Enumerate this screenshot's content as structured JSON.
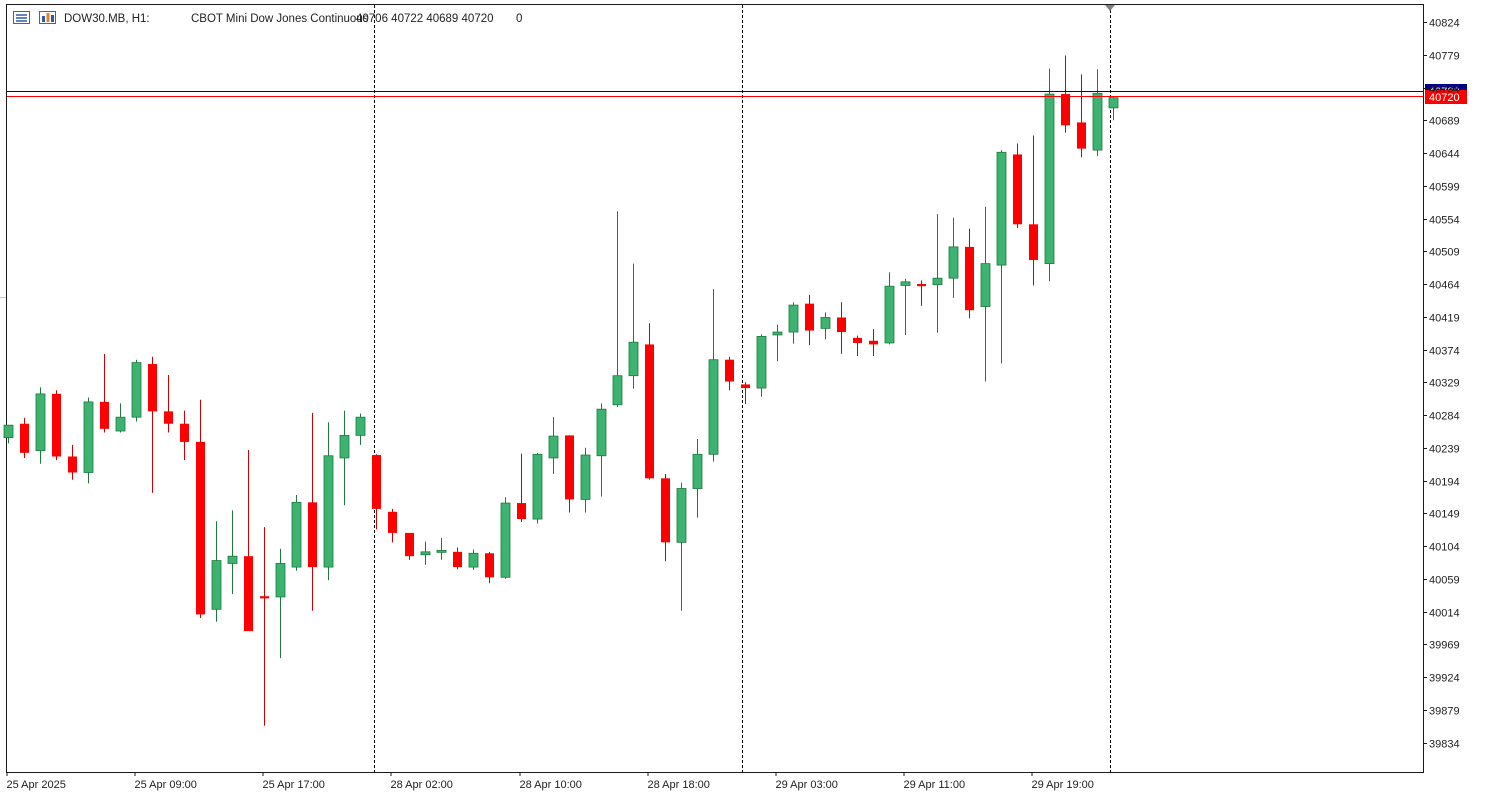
{
  "header": {
    "symbol": "DOW30.MB, H1:",
    "description": "CBOT Mini Dow Jones Continuous",
    "ohlc": "40706 40722 40689 40720",
    "volume": "0",
    "icons": [
      "symbol-list-icon",
      "chart-window-icon"
    ]
  },
  "colors": {
    "bull": "#3cb371",
    "bear": "#ff0000",
    "bull_wick": "#1e7a3c",
    "bear_wick": "#d00000",
    "bid_line": "#ff0000",
    "ask_line": "#00008b",
    "grid": "#000000"
  },
  "chart_data": {
    "type": "candlestick",
    "timeframe": "H1",
    "price_ticks": [
      40824,
      40779,
      40734,
      40689,
      40644,
      40599,
      40554,
      40509,
      40464,
      40419,
      40374,
      40329,
      40284,
      40239,
      40194,
      40149,
      40104,
      40059,
      40014,
      39969,
      39924,
      39879,
      39834
    ],
    "ylim": [
      39782,
      40840
    ],
    "time_labels": [
      "25 Apr 2025",
      "25 Apr 09:00",
      "25 Apr 17:00",
      "28 Apr 02:00",
      "28 Apr 10:00",
      "28 Apr 18:00",
      "29 Apr 03:00",
      "29 Apr 11:00",
      "29 Apr 19:00"
    ],
    "session_separators": [
      "28 Apr 2025",
      "29 Apr 2025",
      "30 Apr 2025"
    ],
    "price_lines": [
      {
        "label": "40720",
        "price": 40722,
        "kind": "ask"
      },
      {
        "label": "40720",
        "price": 40720,
        "kind": "bid"
      }
    ],
    "candles": [
      {
        "o": 40253,
        "h": 40270,
        "l": 40245,
        "c": 40270
      },
      {
        "o": 40272,
        "h": 40280,
        "l": 40225,
        "c": 40232
      },
      {
        "o": 40235,
        "h": 40322,
        "l": 40217,
        "c": 40313
      },
      {
        "o": 40313,
        "h": 40318,
        "l": 40222,
        "c": 40227
      },
      {
        "o": 40227,
        "h": 40243,
        "l": 40195,
        "c": 40205
      },
      {
        "o": 40205,
        "h": 40308,
        "l": 40190,
        "c": 40302
      },
      {
        "o": 40302,
        "h": 40368,
        "l": 40260,
        "c": 40265
      },
      {
        "o": 40262,
        "h": 40300,
        "l": 40260,
        "c": 40281
      },
      {
        "o": 40281,
        "h": 40360,
        "l": 40275,
        "c": 40356
      },
      {
        "o": 40354,
        "h": 40364,
        "l": 40177,
        "c": 40289
      },
      {
        "o": 40289,
        "h": 40339,
        "l": 40260,
        "c": 40272
      },
      {
        "o": 40272,
        "h": 40290,
        "l": 40222,
        "c": 40247
      },
      {
        "o": 40247,
        "h": 40305,
        "l": 40005,
        "c": 40010
      },
      {
        "o": 40017,
        "h": 40138,
        "l": 40000,
        "c": 40084
      },
      {
        "o": 40080,
        "h": 40153,
        "l": 40038,
        "c": 40090
      },
      {
        "o": 40090,
        "h": 40236,
        "l": 39988,
        "c": 39987
      },
      {
        "o": 40035,
        "h": 40130,
        "l": 39857,
        "c": 40032
      },
      {
        "o": 40034,
        "h": 40100,
        "l": 39950,
        "c": 40080
      },
      {
        "o": 40075,
        "h": 40174,
        "l": 40070,
        "c": 40164
      },
      {
        "o": 40164,
        "h": 40287,
        "l": 40015,
        "c": 40075
      },
      {
        "o": 40075,
        "h": 40274,
        "l": 40057,
        "c": 40228
      },
      {
        "o": 40225,
        "h": 40290,
        "l": 40160,
        "c": 40256
      },
      {
        "o": 40256,
        "h": 40286,
        "l": 40243,
        "c": 40281
      },
      {
        "o": 40229,
        "h": 40230,
        "l": 40127,
        "c": 40155
      },
      {
        "o": 40151,
        "h": 40155,
        "l": 40109,
        "c": 40122
      },
      {
        "o": 40122,
        "h": 40119,
        "l": 40085,
        "c": 40090
      },
      {
        "o": 40092,
        "h": 40110,
        "l": 40078,
        "c": 40096
      },
      {
        "o": 40096,
        "h": 40115,
        "l": 40085,
        "c": 40098
      },
      {
        "o": 40096,
        "h": 40102,
        "l": 40072,
        "c": 40075
      },
      {
        "o": 40075,
        "h": 40099,
        "l": 40071,
        "c": 40094
      },
      {
        "o": 40094,
        "h": 40096,
        "l": 40053,
        "c": 40061
      },
      {
        "o": 40061,
        "h": 40171,
        "l": 40059,
        "c": 40163
      },
      {
        "o": 40163,
        "h": 40231,
        "l": 40137,
        "c": 40141
      },
      {
        "o": 40141,
        "h": 40232,
        "l": 40135,
        "c": 40230
      },
      {
        "o": 40225,
        "h": 40281,
        "l": 40203,
        "c": 40255
      },
      {
        "o": 40256,
        "h": 40256,
        "l": 40150,
        "c": 40168
      },
      {
        "o": 40168,
        "h": 40239,
        "l": 40150,
        "c": 40229
      },
      {
        "o": 40228,
        "h": 40300,
        "l": 40172,
        "c": 40292
      },
      {
        "o": 40298,
        "h": 40564,
        "l": 40295,
        "c": 40338
      },
      {
        "o": 40338,
        "h": 40492,
        "l": 40320,
        "c": 40384
      },
      {
        "o": 40381,
        "h": 40410,
        "l": 40195,
        "c": 40197
      },
      {
        "o": 40197,
        "h": 40203,
        "l": 40083,
        "c": 40109
      },
      {
        "o": 40109,
        "h": 40191,
        "l": 40015,
        "c": 40183
      },
      {
        "o": 40183,
        "h": 40251,
        "l": 40143,
        "c": 40230
      },
      {
        "o": 40230,
        "h": 40457,
        "l": 40220,
        "c": 40360
      },
      {
        "o": 40360,
        "h": 40364,
        "l": 40318,
        "c": 40330
      },
      {
        "o": 40326,
        "h": 40329,
        "l": 40299,
        "c": 40321
      },
      {
        "o": 40321,
        "h": 40395,
        "l": 40309,
        "c": 40392
      },
      {
        "o": 40394,
        "h": 40408,
        "l": 40358,
        "c": 40398
      },
      {
        "o": 40398,
        "h": 40439,
        "l": 40382,
        "c": 40435
      },
      {
        "o": 40437,
        "h": 40449,
        "l": 40380,
        "c": 40400
      },
      {
        "o": 40403,
        "h": 40425,
        "l": 40388,
        "c": 40418
      },
      {
        "o": 40418,
        "h": 40439,
        "l": 40368,
        "c": 40398
      },
      {
        "o": 40390,
        "h": 40393,
        "l": 40365,
        "c": 40383
      },
      {
        "o": 40386,
        "h": 40402,
        "l": 40365,
        "c": 40381
      },
      {
        "o": 40383,
        "h": 40480,
        "l": 40381,
        "c": 40461
      },
      {
        "o": 40462,
        "h": 40471,
        "l": 40394,
        "c": 40467
      },
      {
        "o": 40464,
        "h": 40469,
        "l": 40434,
        "c": 40461
      },
      {
        "o": 40463,
        "h": 40560,
        "l": 40397,
        "c": 40472
      },
      {
        "o": 40472,
        "h": 40555,
        "l": 40445,
        "c": 40515
      },
      {
        "o": 40515,
        "h": 40540,
        "l": 40417,
        "c": 40428
      },
      {
        "o": 40433,
        "h": 40570,
        "l": 40330,
        "c": 40492
      },
      {
        "o": 40490,
        "h": 40648,
        "l": 40355,
        "c": 40645
      },
      {
        "o": 40642,
        "h": 40657,
        "l": 40541,
        "c": 40546
      },
      {
        "o": 40546,
        "h": 40668,
        "l": 40462,
        "c": 40497
      },
      {
        "o": 40492,
        "h": 40760,
        "l": 40468,
        "c": 40725
      },
      {
        "o": 40725,
        "h": 40778,
        "l": 40672,
        "c": 40682
      },
      {
        "o": 40686,
        "h": 40752,
        "l": 40638,
        "c": 40650
      },
      {
        "o": 40648,
        "h": 40759,
        "l": 40640,
        "c": 40726
      },
      {
        "o": 40706,
        "h": 40722,
        "l": 40689,
        "c": 40720
      }
    ]
  }
}
